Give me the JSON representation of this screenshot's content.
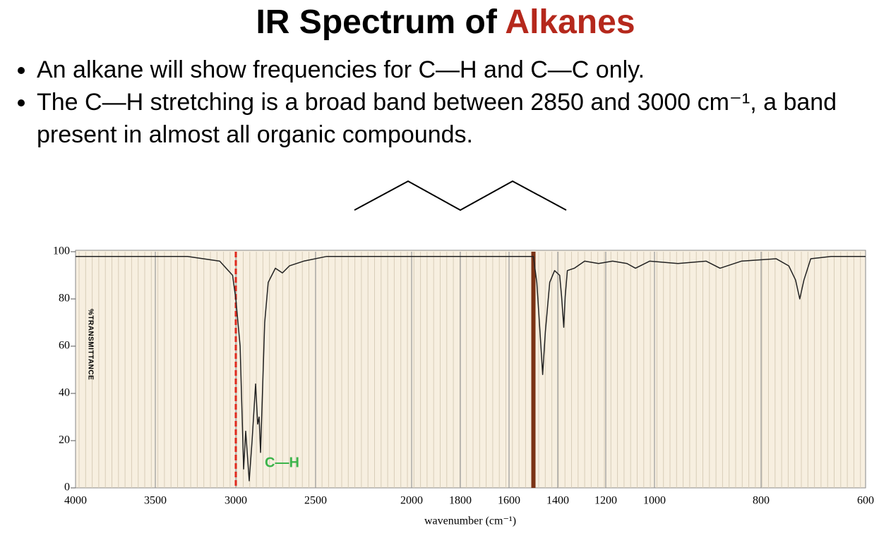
{
  "title_parts": [
    "IR Spectrum of",
    "Alkanes"
  ],
  "bullets": [
    "An alkane will show frequencies for C—H and C—C only.",
    "The C—H stretching is a broad band between 2850 and 3000 cm⁻¹, a band present in almost all organic compounds."
  ],
  "chart_data": {
    "type": "line",
    "y_label": "%TRANSMITTANCE",
    "x_label": "wavenumber (cm⁻¹)",
    "annotation": "C—H",
    "annotation_color": "#3cb44b",
    "xlim": [
      4000,
      600
    ],
    "ylim": [
      0,
      100
    ],
    "xticks": [
      4000,
      3500,
      3000,
      2500,
      2000,
      1800,
      1600,
      1400,
      1200,
      1000,
      800,
      600
    ],
    "yticks": [
      0,
      20,
      40,
      60,
      80,
      100
    ],
    "grid": true,
    "markers": [
      {
        "x": 3000,
        "color": "#e02a1e",
        "style": "dashed"
      },
      {
        "x": 1500,
        "color": "#7b3315",
        "style": "solid"
      }
    ],
    "series": [
      {
        "name": "spectrum",
        "color": "#222222",
        "x": [
          4000,
          3300,
          3100,
          3020,
          3000,
          2973,
          2951,
          2938,
          2916,
          2898,
          2876,
          2863,
          2854,
          2845,
          2819,
          2797,
          2752,
          2708,
          2664,
          2575,
          2442,
          2000,
          1500,
          1486,
          1471,
          1462,
          1451,
          1433,
          1413,
          1392,
          1384,
          1375,
          1369,
          1360,
          1331,
          1288,
          1230,
          1172,
          1113,
          1078,
          1020,
          956,
          903,
          877,
          837,
          771,
          747,
          734,
          726,
          718,
          705,
          666,
          600
        ],
        "values": [
          98,
          98,
          96,
          90,
          80,
          60,
          8,
          24,
          3,
          20,
          44,
          27,
          30,
          15,
          70,
          87,
          93,
          91,
          94,
          96,
          98,
          98,
          98,
          87,
          63,
          48,
          66,
          87,
          92,
          90,
          81,
          68,
          81,
          92,
          93,
          96,
          95,
          96,
          95,
          93,
          96,
          95,
          96,
          93,
          96,
          97,
          94,
          88,
          80,
          88,
          97,
          98,
          98
        ]
      }
    ]
  }
}
